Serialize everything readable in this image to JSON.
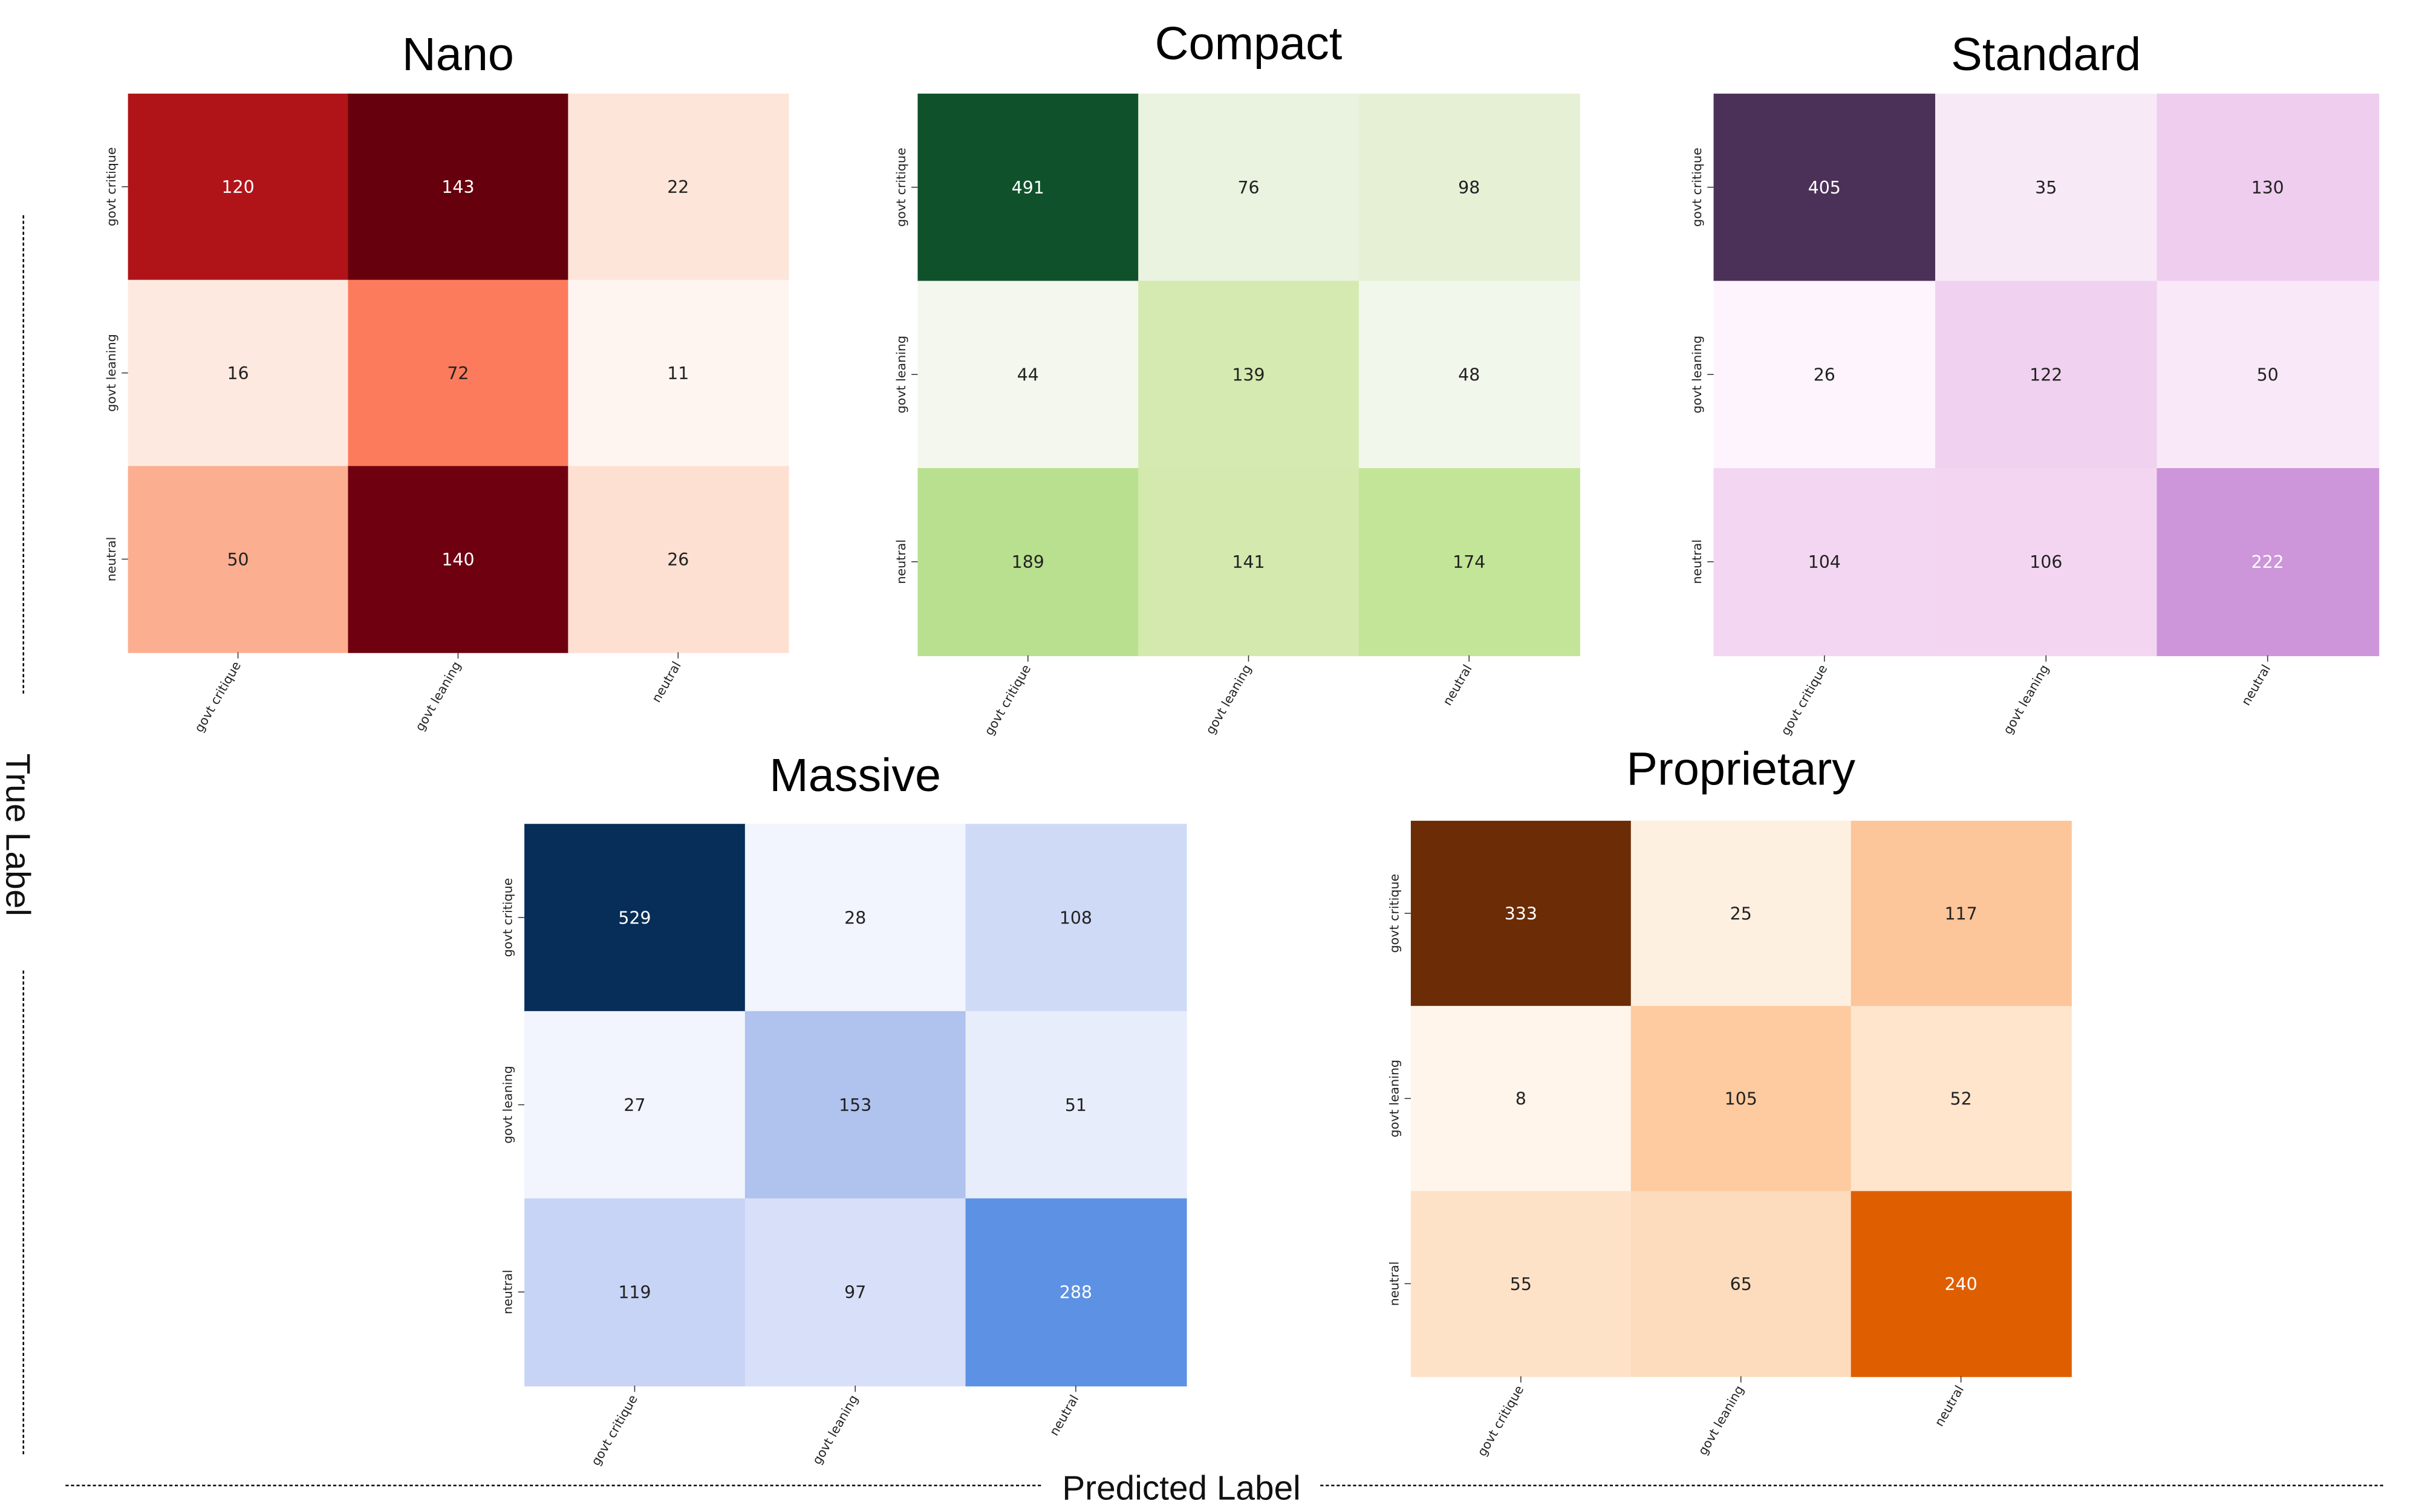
{
  "chart_data": {
    "type": "heatmap",
    "xlabel": "Predicted Label",
    "ylabel": "True Label",
    "categories": [
      "govt critique",
      "govt leaning",
      "neutral"
    ],
    "charts": [
      {
        "title": "Nano",
        "colormap": "Reds",
        "values": [
          [
            120,
            143,
            22
          ],
          [
            16,
            72,
            11
          ],
          [
            50,
            140,
            26
          ]
        ],
        "colors": [
          [
            "#b01419",
            "#67000d",
            "#fee5d9"
          ],
          [
            "#fee9e0",
            "#fc7b5c",
            "#fff5f0"
          ],
          [
            "#fcae91",
            "#6f0010",
            "#fee0d2"
          ]
        ],
        "text_colors": [
          [
            "#ffffff",
            "#ffffff",
            "#222222"
          ],
          [
            "#222222",
            "#222222",
            "#222222"
          ],
          [
            "#222222",
            "#ffffff",
            "#222222"
          ]
        ]
      },
      {
        "title": "Compact",
        "colormap": "Greens",
        "values": [
          [
            491,
            76,
            98
          ],
          [
            44,
            139,
            48
          ],
          [
            189,
            141,
            174
          ]
        ],
        "colors": [
          [
            "#0f512b",
            "#eaf2e0",
            "#e5f0d5"
          ],
          [
            "#f3f7ee",
            "#d5eab0",
            "#f2f7eb"
          ],
          [
            "#b8e08e",
            "#d4e9ad",
            "#c3e598"
          ]
        ],
        "text_colors": [
          [
            "#ffffff",
            "#222222",
            "#222222"
          ],
          [
            "#222222",
            "#222222",
            "#222222"
          ],
          [
            "#222222",
            "#222222",
            "#222222"
          ]
        ]
      },
      {
        "title": "Standard",
        "colormap": "Purples",
        "values": [
          [
            405,
            35,
            130
          ],
          [
            26,
            122,
            50
          ],
          [
            104,
            106,
            222
          ]
        ],
        "colors": [
          [
            "#4b3158",
            "#f7eaf6",
            "#efcdee"
          ],
          [
            "#fdf4fd",
            "#f0d1ef",
            "#f9e8f8"
          ],
          [
            "#f3d6f1",
            "#f3d5f1",
            "#cd95da"
          ]
        ],
        "text_colors": [
          [
            "#ffffff",
            "#222222",
            "#222222"
          ],
          [
            "#222222",
            "#222222",
            "#222222"
          ],
          [
            "#222222",
            "#222222",
            "#ffffff"
          ]
        ]
      },
      {
        "title": "Massive",
        "colormap": "Blues",
        "values": [
          [
            529,
            28,
            108
          ],
          [
            27,
            153,
            51
          ],
          [
            119,
            97,
            288
          ]
        ],
        "colors": [
          [
            "#072e58",
            "#f2f5fd",
            "#cfdaf7"
          ],
          [
            "#f2f5fd",
            "#b0c2ee",
            "#e8edfb"
          ],
          [
            "#c8d4f5",
            "#d8e0f9",
            "#5d91e3"
          ]
        ],
        "text_colors": [
          [
            "#ffffff",
            "#222222",
            "#222222"
          ],
          [
            "#222222",
            "#222222",
            "#222222"
          ],
          [
            "#222222",
            "#222222",
            "#ffffff"
          ]
        ]
      },
      {
        "title": "Proprietary",
        "colormap": "Oranges",
        "values": [
          [
            333,
            25,
            117
          ],
          [
            8,
            105,
            52
          ],
          [
            55,
            65,
            240
          ]
        ],
        "colors": [
          [
            "#6b2c06",
            "#fdf0e1",
            "#fdc59a"
          ],
          [
            "#fff5eb",
            "#fdcb9f",
            "#fee5cc"
          ],
          [
            "#fee2c8",
            "#fddcbd",
            "#df5f00"
          ]
        ],
        "text_colors": [
          [
            "#ffffff",
            "#222222",
            "#222222"
          ],
          [
            "#222222",
            "#222222",
            "#222222"
          ],
          [
            "#222222",
            "#222222",
            "#ffffff"
          ]
        ]
      }
    ]
  }
}
